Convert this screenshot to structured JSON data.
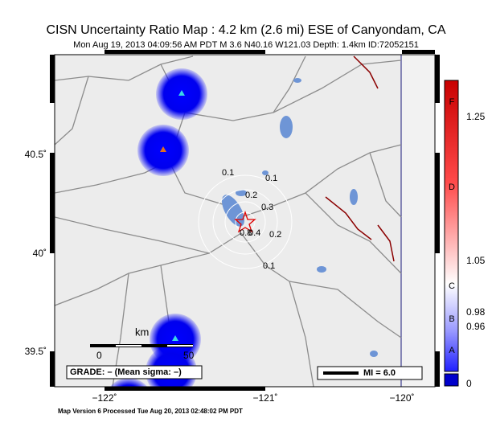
{
  "header": {
    "title": "CISN Uncertainty Ratio Map : 4.2 km (2.6 mi) ESE of Canyondam, CA",
    "subtitle": "Mon Aug 19, 2013 04:09:56 AM PDT   M 3.6   N40.16 W121.03   Depth: 1.4km   ID:72052151"
  },
  "axes": {
    "x_labels": [
      "−122˚",
      "−121˚",
      "−120˚"
    ],
    "y_labels": [
      "40.5˚",
      "40˚",
      "39.5˚"
    ]
  },
  "contour_labels": [
    "0.1",
    "0.1",
    "0.2",
    "0.3",
    "0.2",
    "0.4",
    "0.8",
    "0.1"
  ],
  "scale_bar": {
    "unit": "km",
    "start": "0",
    "end": "50"
  },
  "legend": {
    "grade": "GRADE: – (Mean sigma: –)",
    "mi": "MI = 6.0"
  },
  "colorbar": {
    "grades": [
      "F",
      "D",
      "C",
      "B",
      "A"
    ],
    "labels": [
      "1.25",
      "1.05",
      "0.98",
      "0.96",
      "0"
    ]
  },
  "footer": "Map Version 6 Processed Tue Aug 20, 2013 02:48:02 PM PDT"
}
